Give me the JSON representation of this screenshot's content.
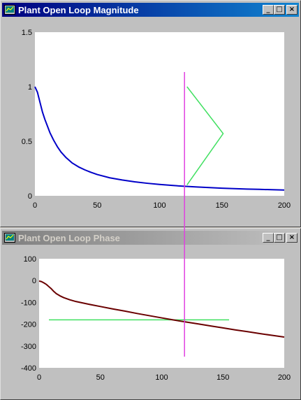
{
  "windows": [
    {
      "title": "Plant Open Loop Magnitude",
      "active": true,
      "buttons": {
        "minimize": "_",
        "maximize": "□",
        "close": "×"
      }
    },
    {
      "title": "Plant Open Loop Phase",
      "active": false,
      "buttons": {
        "minimize": "_",
        "maximize": "□",
        "close": "×"
      }
    }
  ],
  "colors": {
    "magnitude_line": "#0000c8",
    "phase_line": "#6a0000",
    "cursor": "#e040e0",
    "guide": "#40e060",
    "plot_bg": "#ffffff",
    "window_bg": "#c0c0c0"
  },
  "cursor": {
    "x": 120
  },
  "chart_data": [
    {
      "type": "line",
      "x_ticks": [
        "0",
        "50",
        "100",
        "150",
        "200"
      ],
      "y_ticks": [
        "0",
        "0.5",
        "1",
        "1.5"
      ],
      "xlim": [
        0,
        200
      ],
      "ylim": [
        0,
        1.5
      ],
      "series": [
        {
          "x": [
            0,
            2,
            4,
            6,
            8,
            10,
            12,
            15,
            18,
            21,
            25,
            30,
            35,
            40,
            45,
            50,
            60,
            70,
            80,
            90,
            100,
            110,
            120,
            130,
            140,
            150,
            160,
            170,
            180,
            190,
            200
          ],
          "y": [
            1.0,
            0.95,
            0.86,
            0.77,
            0.7,
            0.64,
            0.58,
            0.51,
            0.45,
            0.4,
            0.35,
            0.3,
            0.265,
            0.238,
            0.215,
            0.195,
            0.165,
            0.145,
            0.128,
            0.115,
            0.104,
            0.095,
            0.087,
            0.081,
            0.075,
            0.07,
            0.066,
            0.062,
            0.059,
            0.056,
            0.053
          ]
        }
      ],
      "guides": [
        {
          "x": [
            122,
            151,
            122
          ],
          "y": [
            1.0,
            0.57,
            0.1
          ]
        }
      ]
    },
    {
      "type": "line",
      "x_ticks": [
        "0",
        "50",
        "100",
        "150",
        "200"
      ],
      "y_ticks": [
        "100",
        "0",
        "-100",
        "-200",
        "-300",
        "-400"
      ],
      "xlim": [
        0,
        200
      ],
      "ylim": [
        -400,
        100
      ],
      "series": [
        {
          "x": [
            0,
            2,
            4,
            6,
            8,
            10,
            12,
            14,
            17,
            20,
            25,
            30,
            40,
            50,
            60,
            70,
            80,
            90,
            100,
            110,
            120,
            130,
            140,
            150,
            160,
            170,
            180,
            190,
            200
          ],
          "y": [
            -2,
            -5,
            -11,
            -18,
            -28,
            -38,
            -50,
            -60,
            -70,
            -78,
            -88,
            -96,
            -108,
            -119,
            -130,
            -140,
            -151,
            -161,
            -171,
            -181,
            -190,
            -199,
            -208,
            -217,
            -226,
            -234,
            -243,
            -251,
            -259
          ]
        }
      ],
      "guides": [
        {
          "x": [
            8,
            155
          ],
          "y": [
            -180,
            -180
          ]
        }
      ]
    }
  ]
}
